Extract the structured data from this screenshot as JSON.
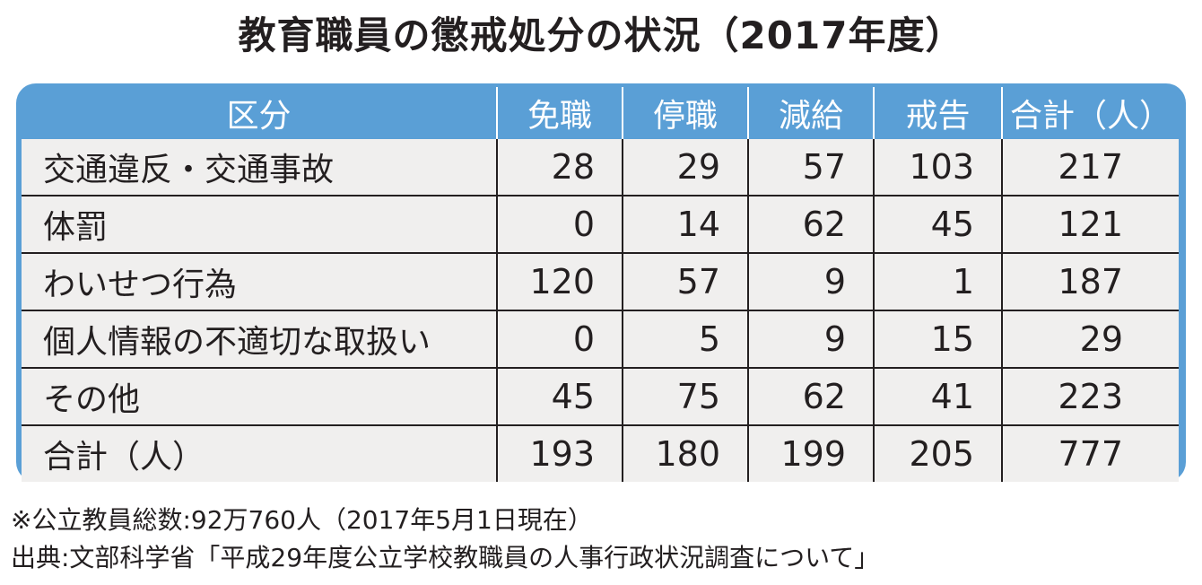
{
  "title": "教育職員の懲戒処分の状況（2017年度）",
  "table": {
    "headers": [
      "区分",
      "免職",
      "停職",
      "減給",
      "戒告",
      "合計（人）"
    ],
    "rows": [
      [
        "交通違反・交通事故",
        "28",
        "29",
        "57",
        "103",
        "217"
      ],
      [
        "体罰",
        "0",
        "14",
        "62",
        "45",
        "121"
      ],
      [
        "わいせつ行為",
        "120",
        "57",
        "9",
        "1",
        "187"
      ],
      [
        "個人情報の不適切な取扱い",
        "0",
        "5",
        "9",
        "15",
        "29"
      ],
      [
        "その他",
        "45",
        "75",
        "62",
        "41",
        "223"
      ],
      [
        "合計（人）",
        "193",
        "180",
        "199",
        "205",
        "777"
      ]
    ]
  },
  "notes": {
    "note1": "※公立教員総数:92万760人（2017年5月1日現在）",
    "note2": "出典:文部科学省「平成29年度公立学校教職員の人事行政状況調査について」"
  },
  "colors": {
    "header_bg": "#5a9fd6",
    "cell_bg": "#f0efee",
    "text": "#231f20"
  }
}
